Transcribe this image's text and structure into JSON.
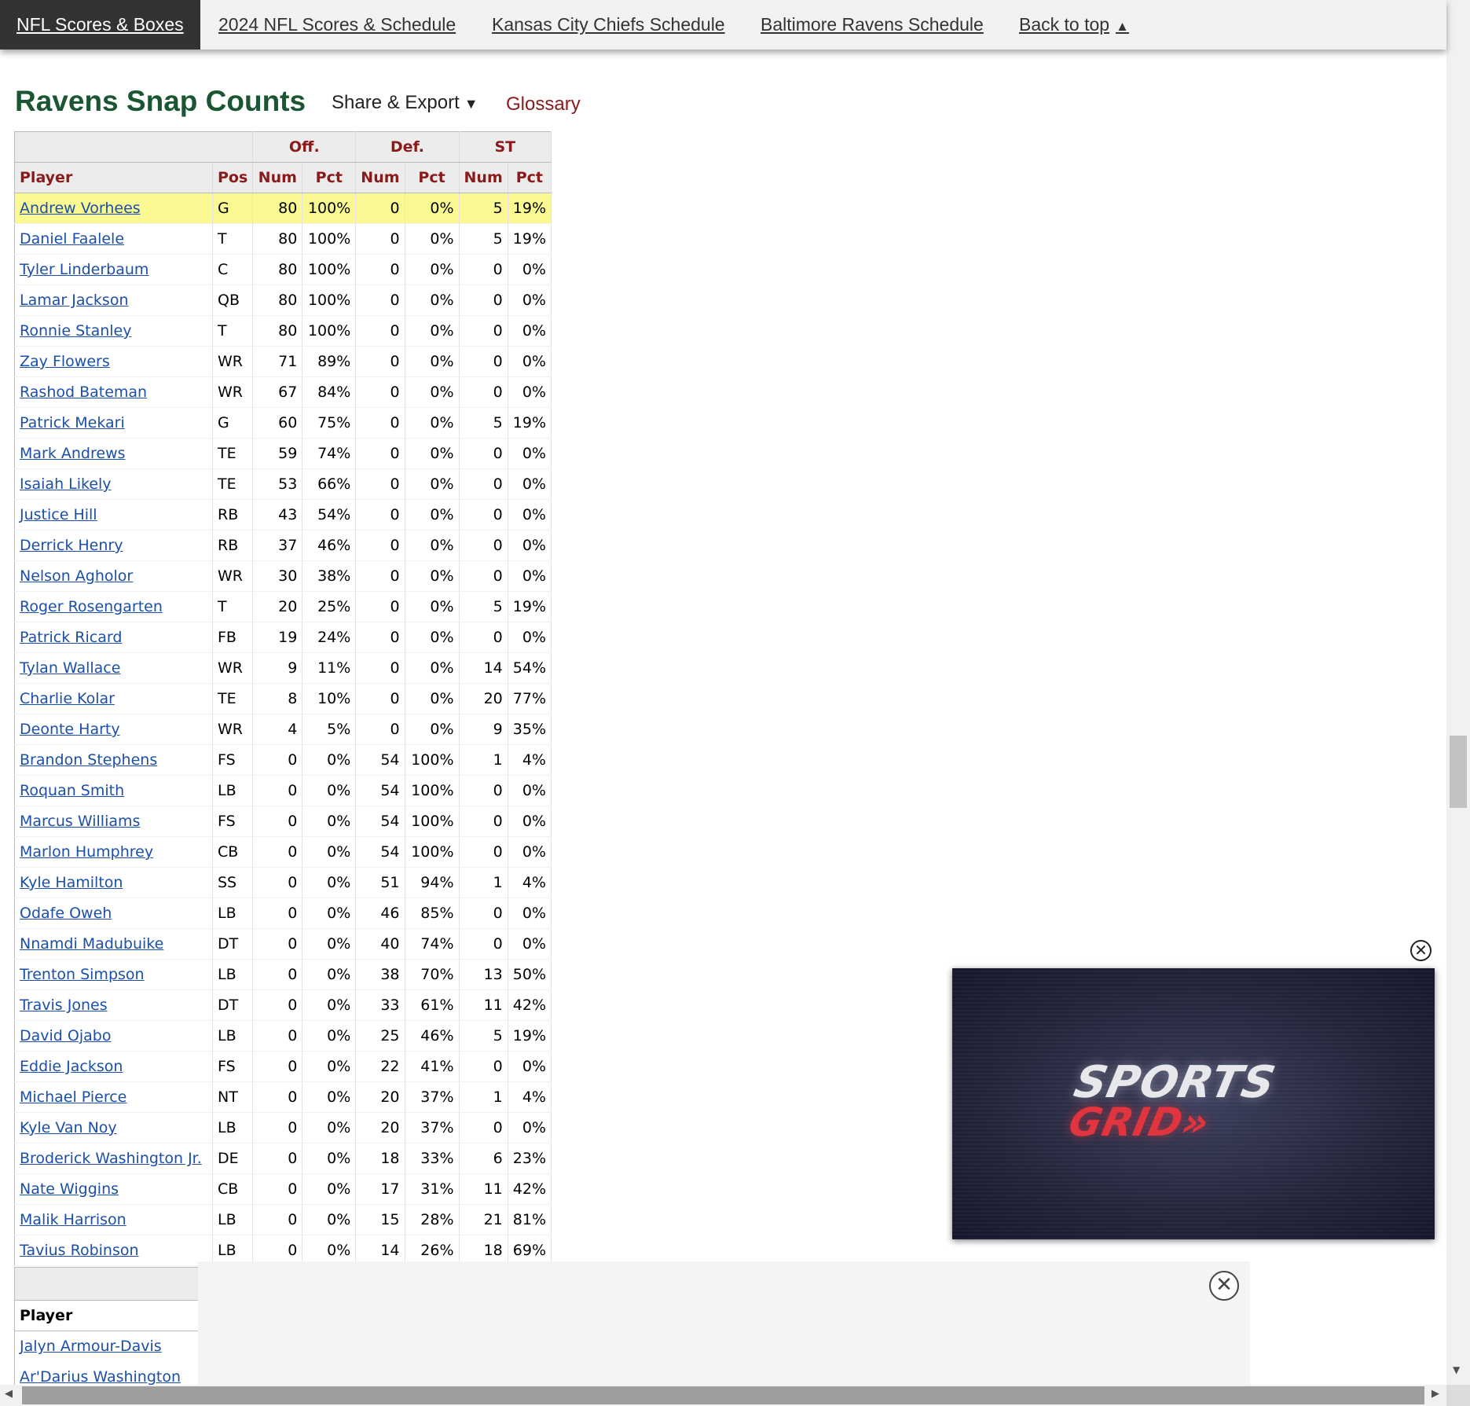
{
  "nav": {
    "items": [
      {
        "label": "NFL Scores & Boxes"
      },
      {
        "label": "2024 NFL Scores & Schedule"
      },
      {
        "label": "Kansas City Chiefs Schedule"
      },
      {
        "label": "Baltimore Ravens Schedule"
      },
      {
        "label": "Back to top"
      }
    ],
    "back_to_top_arrow": "▲"
  },
  "section": {
    "title": "Ravens Snap Counts",
    "share_export": "Share & Export",
    "share_caret": "▼",
    "glossary": "Glossary"
  },
  "table": {
    "group_headers": [
      "",
      "Off.",
      "Def.",
      "ST"
    ],
    "columns": [
      "Player",
      "Pos",
      "Num",
      "Pct",
      "Num",
      "Pct",
      "Num",
      "Pct"
    ],
    "rows": [
      [
        "Andrew Vorhees",
        "G",
        "80",
        "100%",
        "0",
        "0%",
        "5",
        "19%"
      ],
      [
        "Daniel Faalele",
        "T",
        "80",
        "100%",
        "0",
        "0%",
        "5",
        "19%"
      ],
      [
        "Tyler Linderbaum",
        "C",
        "80",
        "100%",
        "0",
        "0%",
        "0",
        "0%"
      ],
      [
        "Lamar Jackson",
        "QB",
        "80",
        "100%",
        "0",
        "0%",
        "0",
        "0%"
      ],
      [
        "Ronnie Stanley",
        "T",
        "80",
        "100%",
        "0",
        "0%",
        "0",
        "0%"
      ],
      [
        "Zay Flowers",
        "WR",
        "71",
        "89%",
        "0",
        "0%",
        "0",
        "0%"
      ],
      [
        "Rashod Bateman",
        "WR",
        "67",
        "84%",
        "0",
        "0%",
        "0",
        "0%"
      ],
      [
        "Patrick Mekari",
        "G",
        "60",
        "75%",
        "0",
        "0%",
        "5",
        "19%"
      ],
      [
        "Mark Andrews",
        "TE",
        "59",
        "74%",
        "0",
        "0%",
        "0",
        "0%"
      ],
      [
        "Isaiah Likely",
        "TE",
        "53",
        "66%",
        "0",
        "0%",
        "0",
        "0%"
      ],
      [
        "Justice Hill",
        "RB",
        "43",
        "54%",
        "0",
        "0%",
        "0",
        "0%"
      ],
      [
        "Derrick Henry",
        "RB",
        "37",
        "46%",
        "0",
        "0%",
        "0",
        "0%"
      ],
      [
        "Nelson Agholor",
        "WR",
        "30",
        "38%",
        "0",
        "0%",
        "0",
        "0%"
      ],
      [
        "Roger Rosengarten",
        "T",
        "20",
        "25%",
        "0",
        "0%",
        "5",
        "19%"
      ],
      [
        "Patrick Ricard",
        "FB",
        "19",
        "24%",
        "0",
        "0%",
        "0",
        "0%"
      ],
      [
        "Tylan Wallace",
        "WR",
        "9",
        "11%",
        "0",
        "0%",
        "14",
        "54%"
      ],
      [
        "Charlie Kolar",
        "TE",
        "8",
        "10%",
        "0",
        "0%",
        "20",
        "77%"
      ],
      [
        "Deonte Harty",
        "WR",
        "4",
        "5%",
        "0",
        "0%",
        "9",
        "35%"
      ],
      [
        "Brandon Stephens",
        "FS",
        "0",
        "0%",
        "54",
        "100%",
        "1",
        "4%"
      ],
      [
        "Roquan Smith",
        "LB",
        "0",
        "0%",
        "54",
        "100%",
        "0",
        "0%"
      ],
      [
        "Marcus Williams",
        "FS",
        "0",
        "0%",
        "54",
        "100%",
        "0",
        "0%"
      ],
      [
        "Marlon Humphrey",
        "CB",
        "0",
        "0%",
        "54",
        "100%",
        "0",
        "0%"
      ],
      [
        "Kyle Hamilton",
        "SS",
        "0",
        "0%",
        "51",
        "94%",
        "1",
        "4%"
      ],
      [
        "Odafe Oweh",
        "LB",
        "0",
        "0%",
        "46",
        "85%",
        "0",
        "0%"
      ],
      [
        "Nnamdi Madubuike",
        "DT",
        "0",
        "0%",
        "40",
        "74%",
        "0",
        "0%"
      ],
      [
        "Trenton Simpson",
        "LB",
        "0",
        "0%",
        "38",
        "70%",
        "13",
        "50%"
      ],
      [
        "Travis Jones",
        "DT",
        "0",
        "0%",
        "33",
        "61%",
        "11",
        "42%"
      ],
      [
        "David Ojabo",
        "LB",
        "0",
        "0%",
        "25",
        "46%",
        "5",
        "19%"
      ],
      [
        "Eddie Jackson",
        "FS",
        "0",
        "0%",
        "22",
        "41%",
        "0",
        "0%"
      ],
      [
        "Michael Pierce",
        "NT",
        "0",
        "0%",
        "20",
        "37%",
        "1",
        "4%"
      ],
      [
        "Kyle Van Noy",
        "LB",
        "0",
        "0%",
        "20",
        "37%",
        "0",
        "0%"
      ],
      [
        "Broderick Washington Jr.",
        "DE",
        "0",
        "0%",
        "18",
        "33%",
        "6",
        "23%"
      ],
      [
        "Nate Wiggins",
        "CB",
        "0",
        "0%",
        "17",
        "31%",
        "11",
        "42%"
      ],
      [
        "Malik Harrison",
        "LB",
        "0",
        "0%",
        "15",
        "28%",
        "21",
        "81%"
      ],
      [
        "Tavius Robinson",
        "LB",
        "0",
        "0%",
        "14",
        "26%",
        "18",
        "69%"
      ]
    ]
  },
  "inactive_table": {
    "header": "Player",
    "rows": [
      "Jalyn Armour-Davis",
      "Ar'Darius Washington"
    ]
  },
  "video_ad": {
    "logo_line1": "SPORTS",
    "logo_line2": "GRID»",
    "close_glyph": "✕"
  },
  "banner_ad": {
    "close_glyph": "✕"
  },
  "scrollbars": {
    "up_arrow": "▲",
    "down_arrow": "▼",
    "left_arrow": "◀",
    "right_arrow": "▶"
  }
}
